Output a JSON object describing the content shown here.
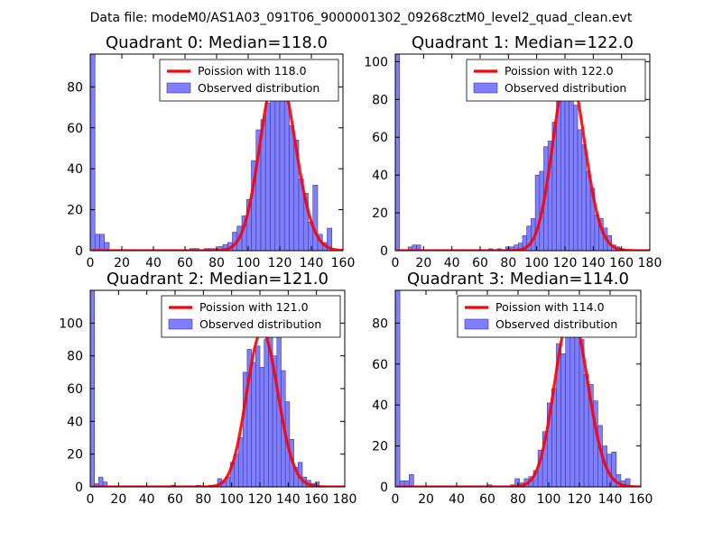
{
  "suptitle": "Data file: modeM0/AS1A03_091T06_9000001302_09268cztM0_level2_quad_clean.evt",
  "colors": {
    "bars": "#7f7ffc",
    "bar_edge": "#3a3aa0",
    "fit": "#ff0000"
  },
  "chart_data": [
    {
      "type": "bar",
      "title": "Quadrant 0: Median=118.0",
      "xlim": [
        0,
        160
      ],
      "ylim": [
        0,
        96
      ],
      "xticks": [
        0,
        20,
        40,
        60,
        80,
        100,
        120,
        140,
        160
      ],
      "yticks": [
        0,
        20,
        40,
        60,
        80
      ],
      "bin_width": 3,
      "bins": [
        [
          0,
          96
        ],
        [
          3,
          8
        ],
        [
          6,
          8
        ],
        [
          9,
          4
        ],
        [
          63,
          1
        ],
        [
          66,
          1
        ],
        [
          72,
          1
        ],
        [
          75,
          1
        ],
        [
          78,
          1
        ],
        [
          81,
          2
        ],
        [
          84,
          3
        ],
        [
          87,
          4
        ],
        [
          90,
          9
        ],
        [
          93,
          12
        ],
        [
          96,
          17
        ],
        [
          99,
          25
        ],
        [
          102,
          44
        ],
        [
          105,
          59
        ],
        [
          108,
          64
        ],
        [
          111,
          72
        ],
        [
          114,
          84
        ],
        [
          117,
          89
        ],
        [
          120,
          85
        ],
        [
          123,
          77
        ],
        [
          126,
          61
        ],
        [
          129,
          54
        ],
        [
          132,
          35
        ],
        [
          135,
          28
        ],
        [
          138,
          14
        ],
        [
          141,
          32
        ],
        [
          144,
          8
        ],
        [
          147,
          4
        ],
        [
          150,
          11
        ]
      ],
      "fit_mean": 118.0,
      "legend": [
        "Poission with 118.0",
        "Observed distribution"
      ]
    },
    {
      "type": "bar",
      "title": "Quadrant 1: Median=122.0",
      "xlim": [
        0,
        180
      ],
      "ylim": [
        0,
        104
      ],
      "xticks": [
        0,
        20,
        40,
        60,
        80,
        100,
        120,
        140,
        160,
        180
      ],
      "yticks": [
        0,
        20,
        40,
        60,
        80,
        100
      ],
      "bin_width": 3,
      "bins": [
        [
          0,
          104
        ],
        [
          9,
          2
        ],
        [
          12,
          3
        ],
        [
          15,
          3
        ],
        [
          66,
          1
        ],
        [
          72,
          1
        ],
        [
          78,
          2
        ],
        [
          81,
          2
        ],
        [
          84,
          3
        ],
        [
          87,
          4
        ],
        [
          90,
          8
        ],
        [
          93,
          13
        ],
        [
          96,
          17
        ],
        [
          99,
          40
        ],
        [
          102,
          42
        ],
        [
          105,
          55
        ],
        [
          108,
          58
        ],
        [
          111,
          68
        ],
        [
          114,
          87
        ],
        [
          117,
          95
        ],
        [
          120,
          96
        ],
        [
          123,
          87
        ],
        [
          126,
          77
        ],
        [
          129,
          64
        ],
        [
          132,
          56
        ],
        [
          135,
          42
        ],
        [
          138,
          33
        ],
        [
          141,
          19
        ],
        [
          144,
          17
        ],
        [
          147,
          12
        ],
        [
          150,
          8
        ],
        [
          153,
          3
        ],
        [
          156,
          2
        ],
        [
          159,
          1
        ]
      ],
      "fit_mean": 122.0,
      "legend": [
        "Poission with 122.0",
        "Observed distribution"
      ]
    },
    {
      "type": "bar",
      "title": "Quadrant 2: Median=121.0",
      "xlim": [
        0,
        180
      ],
      "ylim": [
        0,
        120
      ],
      "xticks": [
        0,
        20,
        40,
        60,
        80,
        100,
        120,
        140,
        160,
        180
      ],
      "yticks": [
        0,
        20,
        40,
        60,
        80,
        100
      ],
      "bin_width": 3,
      "bins": [
        [
          0,
          120
        ],
        [
          3,
          2
        ],
        [
          6,
          6
        ],
        [
          9,
          3
        ],
        [
          57,
          1
        ],
        [
          75,
          1
        ],
        [
          84,
          1
        ],
        [
          87,
          1
        ],
        [
          90,
          5
        ],
        [
          93,
          3
        ],
        [
          96,
          6
        ],
        [
          99,
          15
        ],
        [
          102,
          20
        ],
        [
          105,
          30
        ],
        [
          108,
          70
        ],
        [
          111,
          84
        ],
        [
          114,
          76
        ],
        [
          117,
          86
        ],
        [
          120,
          73
        ],
        [
          123,
          90
        ],
        [
          126,
          93
        ],
        [
          129,
          80
        ],
        [
          132,
          95
        ],
        [
          135,
          71
        ],
        [
          138,
          52
        ],
        [
          141,
          29
        ],
        [
          144,
          12
        ],
        [
          147,
          15
        ],
        [
          150,
          6
        ],
        [
          153,
          4
        ],
        [
          156,
          2
        ],
        [
          159,
          3
        ]
      ],
      "fit_mean": 121.0,
      "legend": [
        "Poission with 121.0",
        "Observed distribution"
      ]
    },
    {
      "type": "bar",
      "title": "Quadrant 3: Median=114.0",
      "xlim": [
        0,
        160
      ],
      "ylim": [
        0,
        96
      ],
      "xticks": [
        0,
        20,
        40,
        60,
        80,
        100,
        120,
        140,
        160
      ],
      "yticks": [
        0,
        20,
        40,
        60,
        80
      ],
      "bin_width": 3,
      "bins": [
        [
          0,
          96
        ],
        [
          3,
          3
        ],
        [
          6,
          3
        ],
        [
          9,
          6
        ],
        [
          60,
          1
        ],
        [
          75,
          1
        ],
        [
          78,
          4
        ],
        [
          81,
          2
        ],
        [
          84,
          4
        ],
        [
          87,
          5
        ],
        [
          90,
          8
        ],
        [
          93,
          18
        ],
        [
          96,
          27
        ],
        [
          99,
          41
        ],
        [
          102,
          48
        ],
        [
          105,
          70
        ],
        [
          108,
          65
        ],
        [
          111,
          82
        ],
        [
          114,
          85
        ],
        [
          117,
          78
        ],
        [
          120,
          72
        ],
        [
          123,
          55
        ],
        [
          126,
          50
        ],
        [
          129,
          42
        ],
        [
          132,
          30
        ],
        [
          135,
          20
        ],
        [
          138,
          16
        ],
        [
          141,
          17
        ],
        [
          144,
          6
        ],
        [
          147,
          3
        ],
        [
          150,
          4
        ]
      ],
      "fit_mean": 114.0,
      "legend": [
        "Poission with 114.0",
        "Observed distribution"
      ]
    }
  ]
}
